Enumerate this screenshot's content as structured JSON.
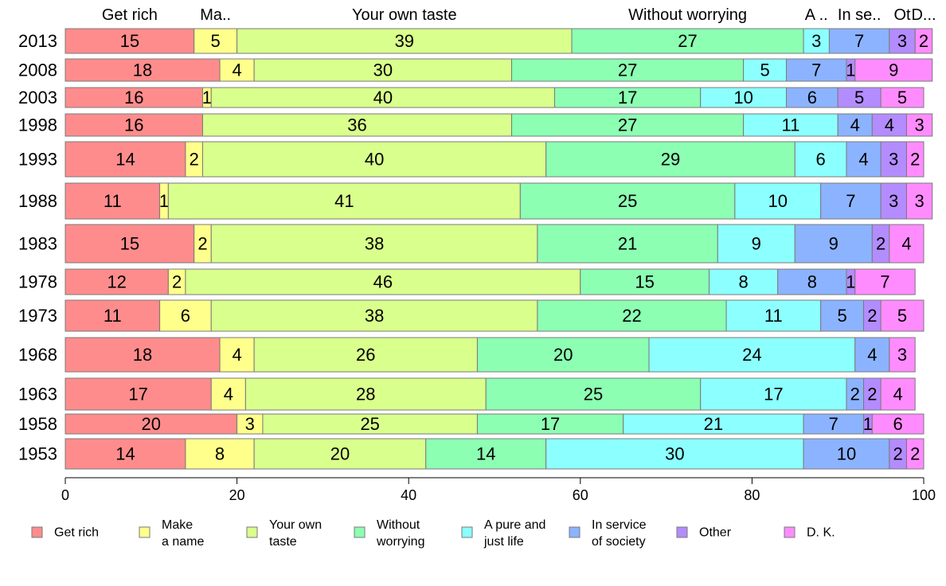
{
  "chart_data": {
    "type": "bar",
    "orientation": "horizontal",
    "stacked": true,
    "title": "",
    "xlabel": "",
    "ylabel": "",
    "xlim": [
      0,
      100
    ],
    "x_ticks": [
      "0",
      "20",
      "40",
      "60",
      "80",
      "100"
    ],
    "grid": false,
    "legend_position": "bottom",
    "categories": [
      "2013",
      "2008",
      "2003",
      "1998",
      "1993",
      "1988",
      "1983",
      "1978",
      "1973",
      "1968",
      "1963",
      "1958",
      "1953"
    ],
    "series": [
      {
        "name": "Get rich",
        "legend_lines": [
          "Get rich"
        ],
        "top_label": "Get rich",
        "color": "#ff8c8c",
        "values": [
          15,
          18,
          16,
          16,
          14,
          11,
          15,
          12,
          11,
          18,
          17,
          20,
          14
        ]
      },
      {
        "name": "Make a name",
        "legend_lines": [
          "Make",
          "a name"
        ],
        "top_label": "Ma..",
        "color": "#ffff8c",
        "values": [
          5,
          4,
          1,
          0,
          2,
          1,
          2,
          2,
          6,
          4,
          4,
          3,
          8
        ]
      },
      {
        "name": "Your own taste",
        "legend_lines": [
          "Your own",
          "taste"
        ],
        "top_label": "Your own taste",
        "color": "#d9ff8c",
        "values": [
          39,
          30,
          40,
          36,
          40,
          41,
          38,
          46,
          38,
          26,
          28,
          25,
          20
        ]
      },
      {
        "name": "Without worrying",
        "legend_lines": [
          "Without",
          "worrying"
        ],
        "top_label": "Without worrying",
        "color": "#8cffb3",
        "values": [
          27,
          27,
          17,
          27,
          29,
          25,
          21,
          15,
          22,
          20,
          25,
          17,
          14
        ]
      },
      {
        "name": "A pure and just life",
        "legend_lines": [
          "A pure and",
          "just life"
        ],
        "top_label": "A ..",
        "color": "#8cffff",
        "values": [
          3,
          5,
          10,
          11,
          6,
          10,
          9,
          8,
          11,
          24,
          17,
          21,
          30
        ]
      },
      {
        "name": "In service of society",
        "legend_lines": [
          "In service",
          "of society"
        ],
        "top_label": "In se..",
        "color": "#8cb3ff",
        "values": [
          7,
          7,
          6,
          4,
          4,
          7,
          9,
          8,
          5,
          4,
          2,
          7,
          10
        ]
      },
      {
        "name": "Other",
        "legend_lines": [
          "Other"
        ],
        "top_label": "Ot",
        "color": "#b38cff",
        "values": [
          3,
          1,
          5,
          4,
          3,
          3,
          2,
          1,
          2,
          0,
          2,
          1,
          2
        ]
      },
      {
        "name": "D. K.",
        "legend_lines": [
          "D. K."
        ],
        "top_label": "D...",
        "color": "#ff8cff",
        "values": [
          2,
          9,
          5,
          3,
          2,
          3,
          4,
          7,
          5,
          3,
          4,
          6,
          2
        ]
      }
    ]
  }
}
